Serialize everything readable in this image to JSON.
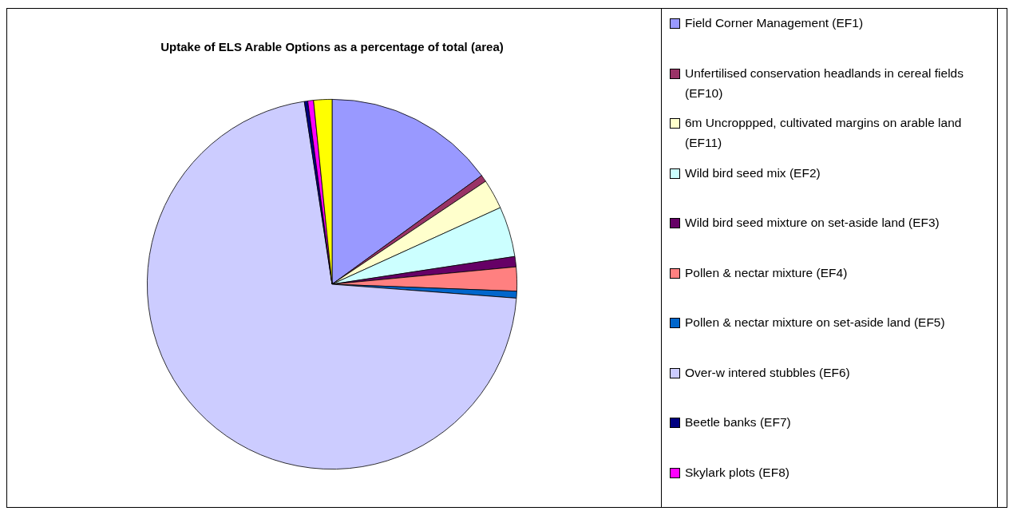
{
  "chart_data": {
    "type": "pie",
    "title": "Uptake of ELS Arable Options as a percentage of total (area)",
    "categories": [
      "Field Corner Management (EF1)",
      "Unfertilised conservation headlands in cereal fields (EF10)",
      "6m Uncroppped, cultivated margins on arable land (EF11)",
      "Wild bird seed mix (EF2)",
      "Wild bird seed mixture on set-aside land (EF3)",
      "Pollen & nectar mixture (EF4)",
      "Pollen & nectar mixture on set-aside land (EF5)",
      "Over-w intered stubbles (EF6)",
      "Beetle banks (EF7)",
      "Skylark plots (EF8)",
      null
    ],
    "values": [
      15.0,
      0.6,
      2.6,
      4.4,
      0.9,
      2.1,
      0.6,
      71.4,
      0.3,
      0.5,
      1.6
    ],
    "colors": [
      "#9999ff",
      "#993366",
      "#ffffcc",
      "#ccffff",
      "#660066",
      "#ff8080",
      "#0066cc",
      "#ccccff",
      "#000080",
      "#ff00ff",
      "#ffff00"
    ],
    "legend": "right"
  }
}
